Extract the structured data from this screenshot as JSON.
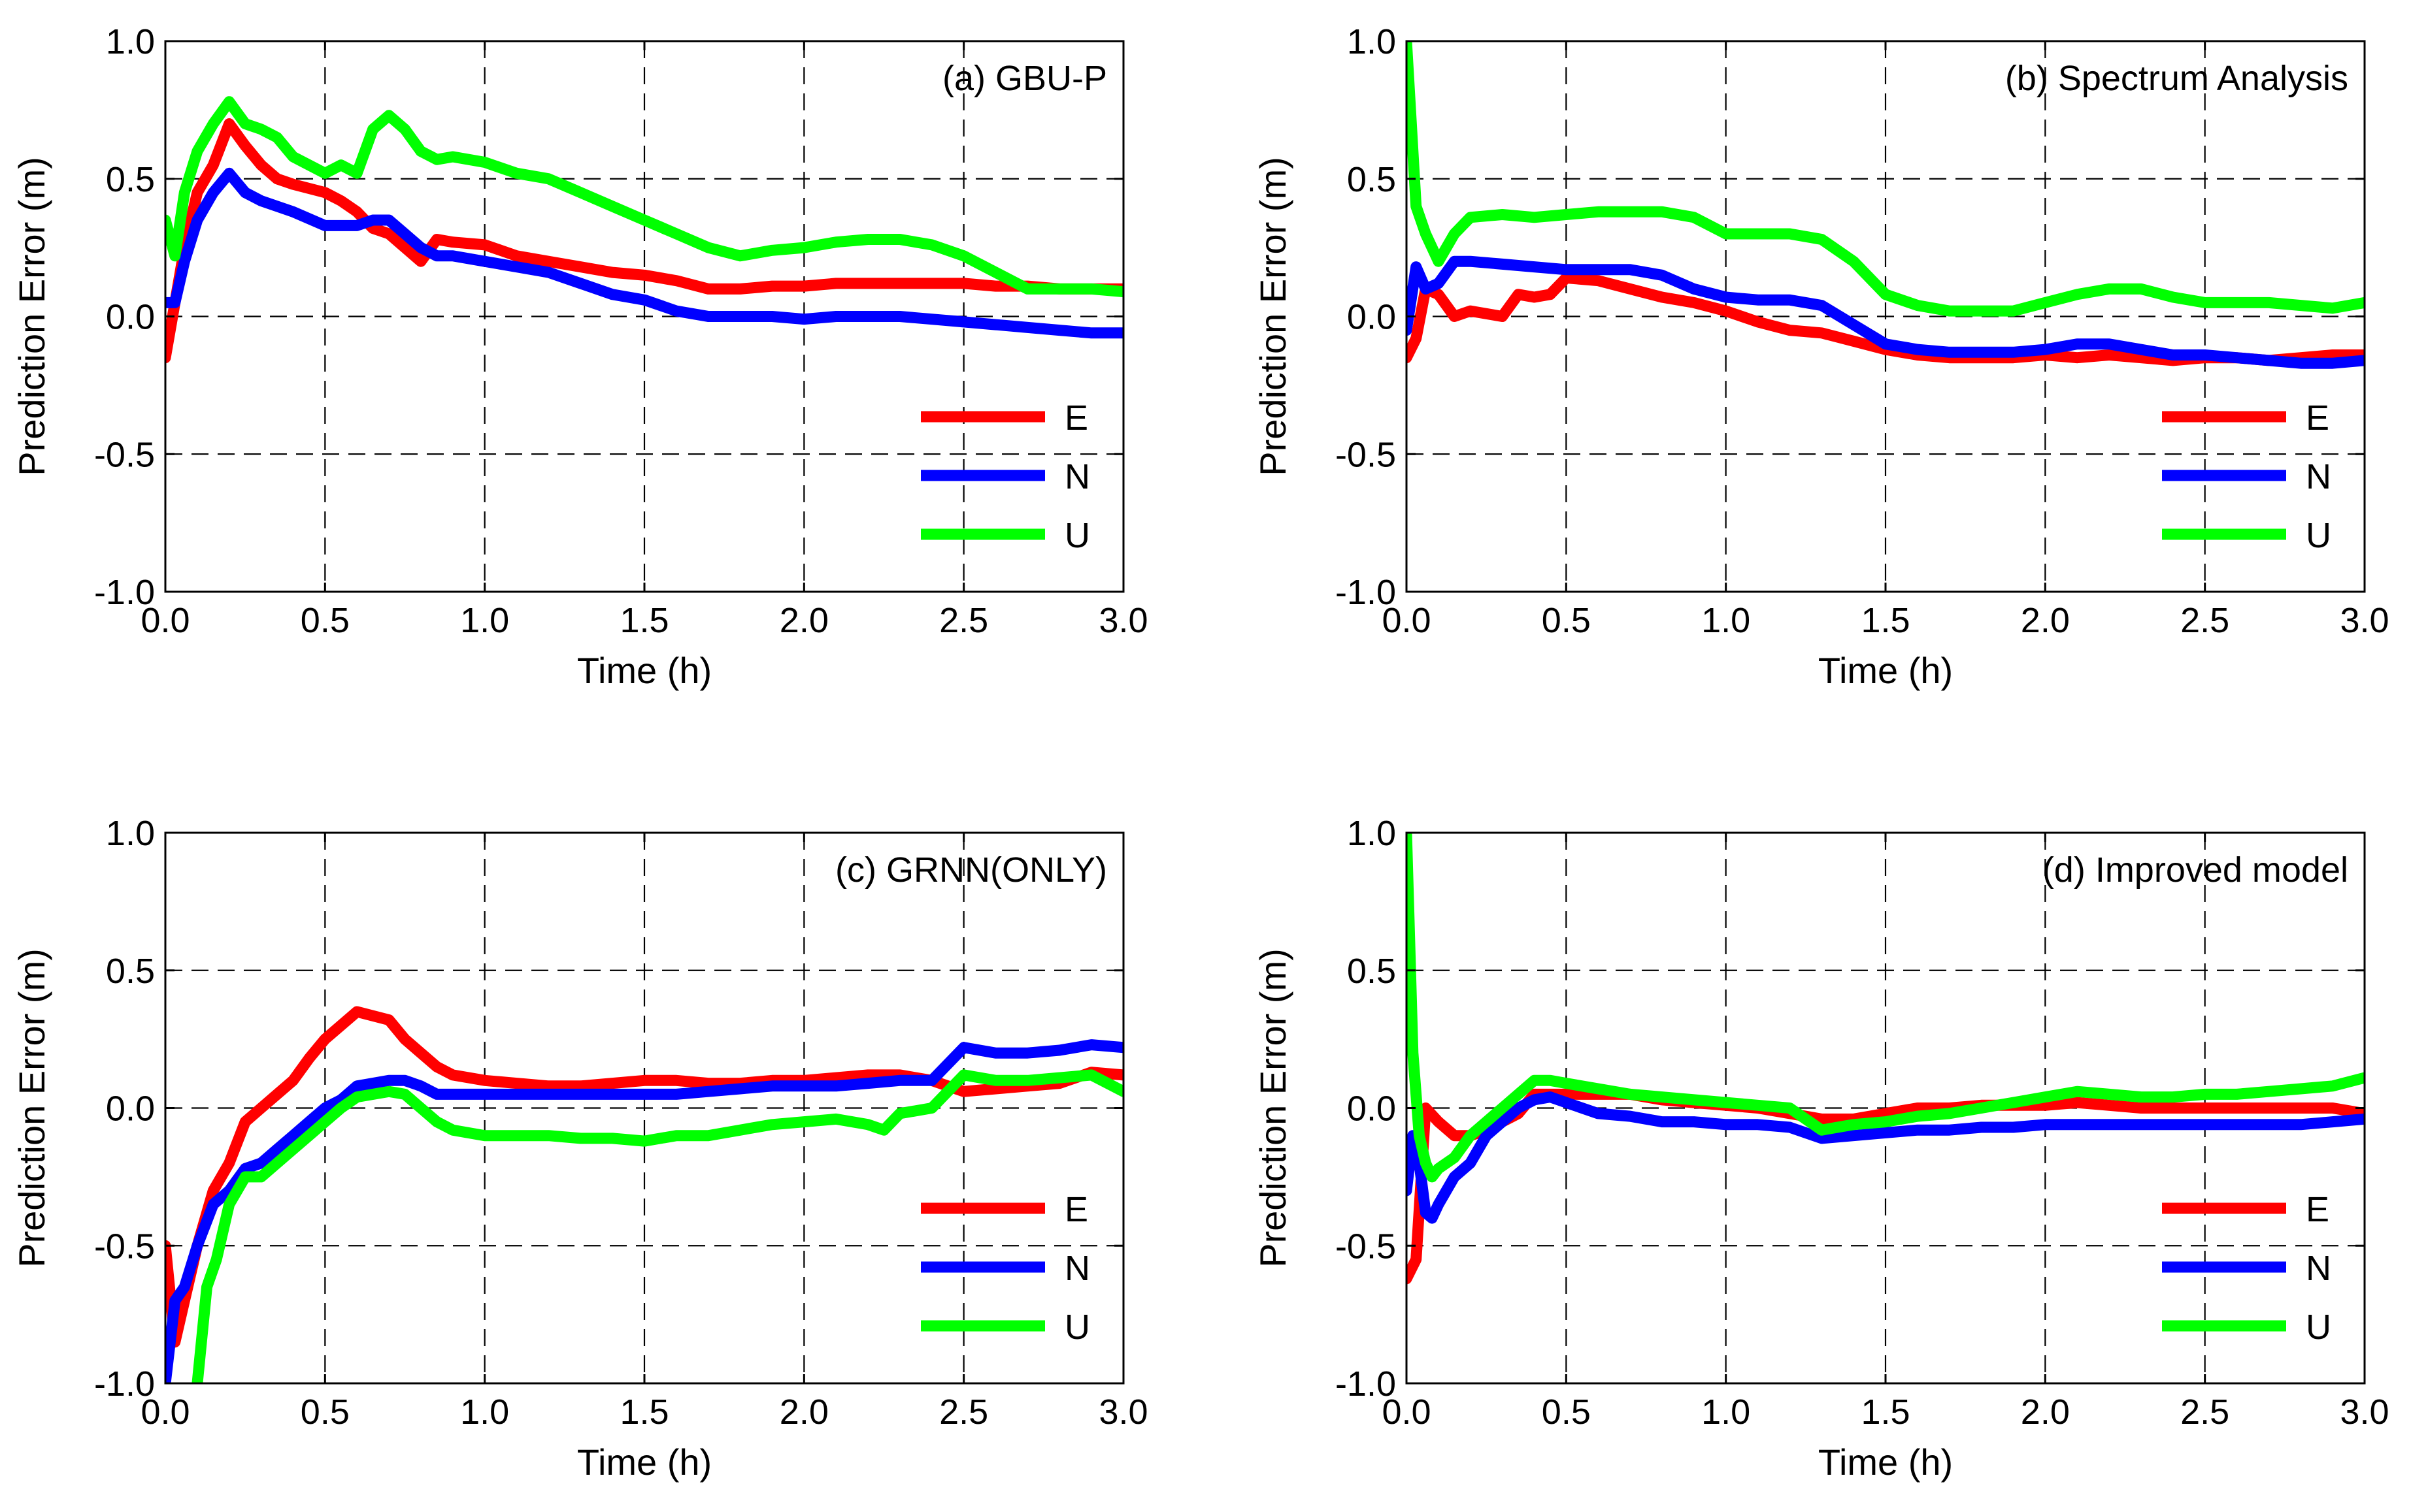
{
  "colors": {
    "E": "#ff0000",
    "N": "#0000ff",
    "U": "#00ff00"
  },
  "chart_data": [
    {
      "type": "line",
      "title": "(a) GBU-P",
      "xlabel": "Time (h)",
      "ylabel": "Prediction Error (m)",
      "xlim": [
        0,
        3
      ],
      "ylim": [
        -1,
        1
      ],
      "xticks": [
        "0.0",
        "0.5",
        "1.0",
        "1.5",
        "2.0",
        "2.5",
        "3.0"
      ],
      "yticks": [
        "1.0",
        "0.5",
        "0.0",
        "-0.5",
        "-1.0"
      ],
      "grid": true,
      "legend_position": "bottom-right",
      "series": [
        {
          "name": "E",
          "x": [
            0,
            0.03,
            0.06,
            0.1,
            0.15,
            0.2,
            0.25,
            0.3,
            0.35,
            0.4,
            0.5,
            0.55,
            0.6,
            0.65,
            0.7,
            0.75,
            0.8,
            0.85,
            0.9,
            1.0,
            1.1,
            1.2,
            1.3,
            1.4,
            1.5,
            1.6,
            1.7,
            1.8,
            1.9,
            2.0,
            2.1,
            2.2,
            2.3,
            2.4,
            2.5,
            2.6,
            2.7,
            2.8,
            2.9,
            3.0
          ],
          "values": [
            -0.15,
            0.05,
            0.25,
            0.45,
            0.55,
            0.7,
            0.62,
            0.55,
            0.5,
            0.48,
            0.45,
            0.42,
            0.38,
            0.32,
            0.3,
            0.25,
            0.2,
            0.28,
            0.27,
            0.26,
            0.22,
            0.2,
            0.18,
            0.16,
            0.15,
            0.13,
            0.1,
            0.1,
            0.11,
            0.11,
            0.12,
            0.12,
            0.12,
            0.12,
            0.12,
            0.11,
            0.11,
            0.1,
            0.1,
            0.1
          ]
        },
        {
          "name": "N",
          "x": [
            0,
            0.03,
            0.06,
            0.1,
            0.15,
            0.2,
            0.25,
            0.3,
            0.35,
            0.4,
            0.5,
            0.55,
            0.6,
            0.65,
            0.7,
            0.75,
            0.8,
            0.85,
            0.9,
            1.0,
            1.1,
            1.2,
            1.3,
            1.4,
            1.5,
            1.6,
            1.7,
            1.8,
            1.9,
            2.0,
            2.1,
            2.2,
            2.3,
            2.4,
            2.5,
            2.6,
            2.7,
            2.8,
            2.9,
            3.0
          ],
          "values": [
            0.05,
            0.05,
            0.2,
            0.35,
            0.45,
            0.52,
            0.45,
            0.42,
            0.4,
            0.38,
            0.33,
            0.33,
            0.33,
            0.35,
            0.35,
            0.3,
            0.25,
            0.22,
            0.22,
            0.2,
            0.18,
            0.16,
            0.12,
            0.08,
            0.06,
            0.02,
            0,
            0,
            0,
            -0.01,
            0,
            0,
            0,
            -0.01,
            -0.02,
            -0.03,
            -0.04,
            -0.05,
            -0.06,
            -0.06
          ]
        },
        {
          "name": "U",
          "x": [
            0,
            0.03,
            0.06,
            0.1,
            0.15,
            0.2,
            0.25,
            0.3,
            0.35,
            0.4,
            0.5,
            0.55,
            0.6,
            0.65,
            0.7,
            0.75,
            0.8,
            0.85,
            0.9,
            1.0,
            1.1,
            1.2,
            1.3,
            1.4,
            1.5,
            1.6,
            1.7,
            1.8,
            1.9,
            2.0,
            2.1,
            2.2,
            2.3,
            2.4,
            2.5,
            2.6,
            2.7,
            2.8,
            2.9,
            3.0
          ],
          "values": [
            0.35,
            0.22,
            0.45,
            0.6,
            0.7,
            0.78,
            0.7,
            0.68,
            0.65,
            0.58,
            0.52,
            0.55,
            0.52,
            0.68,
            0.73,
            0.68,
            0.6,
            0.57,
            0.58,
            0.56,
            0.52,
            0.5,
            0.45,
            0.4,
            0.35,
            0.3,
            0.25,
            0.22,
            0.24,
            0.25,
            0.27,
            0.28,
            0.28,
            0.26,
            0.22,
            0.16,
            0.1,
            0.1,
            0.1,
            0.09
          ]
        }
      ]
    },
    {
      "type": "line",
      "title": "(b) Spectrum Analysis",
      "xlabel": "Time (h)",
      "ylabel": "Prediction Error (m)",
      "xlim": [
        0,
        3
      ],
      "ylim": [
        -1,
        1
      ],
      "xticks": [
        "0.0",
        "0.5",
        "1.0",
        "1.5",
        "2.0",
        "2.5",
        "3.0"
      ],
      "yticks": [
        "1.0",
        "0.5",
        "0.0",
        "-0.5",
        "-1.0"
      ],
      "grid": true,
      "legend_position": "bottom-right",
      "series": [
        {
          "name": "E",
          "x": [
            0,
            0.03,
            0.06,
            0.1,
            0.15,
            0.2,
            0.3,
            0.35,
            0.4,
            0.45,
            0.5,
            0.6,
            0.7,
            0.8,
            0.9,
            1.0,
            1.1,
            1.2,
            1.3,
            1.4,
            1.5,
            1.6,
            1.7,
            1.8,
            1.9,
            2.0,
            2.1,
            2.2,
            2.3,
            2.4,
            2.5,
            2.6,
            2.7,
            2.8,
            2.9,
            3.0
          ],
          "values": [
            -0.15,
            -0.08,
            0.1,
            0.08,
            0.0,
            0.02,
            0.0,
            0.08,
            0.07,
            0.08,
            0.14,
            0.13,
            0.1,
            0.07,
            0.05,
            0.02,
            -0.02,
            -0.05,
            -0.06,
            -0.09,
            -0.12,
            -0.14,
            -0.15,
            -0.15,
            -0.15,
            -0.14,
            -0.15,
            -0.14,
            -0.15,
            -0.16,
            -0.15,
            -0.15,
            -0.16,
            -0.15,
            -0.14,
            -0.14
          ]
        },
        {
          "name": "N",
          "x": [
            0,
            0.03,
            0.06,
            0.1,
            0.15,
            0.2,
            0.3,
            0.4,
            0.5,
            0.6,
            0.7,
            0.8,
            0.9,
            1.0,
            1.1,
            1.2,
            1.3,
            1.4,
            1.5,
            1.6,
            1.7,
            1.8,
            1.9,
            2.0,
            2.1,
            2.2,
            2.3,
            2.4,
            2.5,
            2.6,
            2.7,
            2.8,
            2.9,
            3.0
          ],
          "values": [
            -0.05,
            0.18,
            0.1,
            0.12,
            0.2,
            0.2,
            0.19,
            0.18,
            0.17,
            0.17,
            0.17,
            0.15,
            0.1,
            0.07,
            0.06,
            0.06,
            0.04,
            -0.03,
            -0.1,
            -0.12,
            -0.13,
            -0.13,
            -0.13,
            -0.12,
            -0.1,
            -0.1,
            -0.12,
            -0.14,
            -0.14,
            -0.15,
            -0.16,
            -0.17,
            -0.17,
            -0.16
          ]
        },
        {
          "name": "U",
          "x": [
            0,
            0.03,
            0.06,
            0.1,
            0.15,
            0.2,
            0.3,
            0.4,
            0.5,
            0.6,
            0.7,
            0.8,
            0.9,
            1.0,
            1.1,
            1.2,
            1.3,
            1.4,
            1.5,
            1.6,
            1.7,
            1.8,
            1.9,
            2.0,
            2.1,
            2.2,
            2.3,
            2.4,
            2.5,
            2.6,
            2.7,
            2.8,
            2.9,
            3.0
          ],
          "values": [
            1.0,
            0.4,
            0.3,
            0.2,
            0.3,
            0.36,
            0.37,
            0.36,
            0.37,
            0.38,
            0.38,
            0.38,
            0.36,
            0.3,
            0.3,
            0.3,
            0.28,
            0.2,
            0.08,
            0.04,
            0.02,
            0.02,
            0.02,
            0.05,
            0.08,
            0.1,
            0.1,
            0.07,
            0.05,
            0.05,
            0.05,
            0.04,
            0.03,
            0.05
          ]
        }
      ]
    },
    {
      "type": "line",
      "title": "(c) GRNN(ONLY)",
      "xlabel": "Time (h)",
      "ylabel": "Prediction Error (m)",
      "xlim": [
        0,
        3
      ],
      "ylim": [
        -1,
        1
      ],
      "xticks": [
        "0.0",
        "0.5",
        "1.0",
        "1.5",
        "2.0",
        "2.5",
        "3.0"
      ],
      "yticks": [
        "1.0",
        "0.5",
        "0.0",
        "-0.5",
        "-1.0"
      ],
      "grid": true,
      "legend_position": "bottom-right",
      "series": [
        {
          "name": "E",
          "x": [
            0,
            0.03,
            0.06,
            0.1,
            0.15,
            0.2,
            0.25,
            0.3,
            0.35,
            0.4,
            0.45,
            0.5,
            0.55,
            0.6,
            0.7,
            0.75,
            0.8,
            0.85,
            0.9,
            1.0,
            1.1,
            1.2,
            1.3,
            1.4,
            1.5,
            1.6,
            1.7,
            1.8,
            1.9,
            2.0,
            2.1,
            2.2,
            2.3,
            2.4,
            2.5,
            2.6,
            2.7,
            2.8,
            2.9,
            3.0
          ],
          "values": [
            -0.5,
            -0.85,
            -0.7,
            -0.5,
            -0.3,
            -0.2,
            -0.05,
            0.0,
            0.05,
            0.1,
            0.18,
            0.25,
            0.3,
            0.35,
            0.32,
            0.25,
            0.2,
            0.15,
            0.12,
            0.1,
            0.09,
            0.08,
            0.08,
            0.09,
            0.1,
            0.1,
            0.09,
            0.09,
            0.1,
            0.1,
            0.11,
            0.12,
            0.12,
            0.1,
            0.06,
            0.07,
            0.08,
            0.09,
            0.13,
            0.12
          ]
        },
        {
          "name": "N",
          "x": [
            0,
            0.03,
            0.06,
            0.1,
            0.15,
            0.2,
            0.25,
            0.3,
            0.35,
            0.4,
            0.45,
            0.5,
            0.55,
            0.6,
            0.7,
            0.75,
            0.8,
            0.85,
            0.9,
            1.0,
            1.1,
            1.2,
            1.3,
            1.4,
            1.5,
            1.6,
            1.7,
            1.8,
            1.9,
            2.0,
            2.1,
            2.2,
            2.3,
            2.4,
            2.5,
            2.6,
            2.7,
            2.8,
            2.9,
            3.0
          ],
          "values": [
            -1.0,
            -0.7,
            -0.65,
            -0.5,
            -0.35,
            -0.3,
            -0.22,
            -0.2,
            -0.15,
            -0.1,
            -0.05,
            0.0,
            0.03,
            0.08,
            0.1,
            0.1,
            0.08,
            0.05,
            0.05,
            0.05,
            0.05,
            0.05,
            0.05,
            0.05,
            0.05,
            0.05,
            0.06,
            0.07,
            0.08,
            0.08,
            0.08,
            0.09,
            0.1,
            0.1,
            0.22,
            0.2,
            0.2,
            0.21,
            0.23,
            0.22
          ]
        },
        {
          "name": "U",
          "x": [
            0.1,
            0.13,
            0.16,
            0.2,
            0.25,
            0.3,
            0.35,
            0.4,
            0.45,
            0.5,
            0.55,
            0.6,
            0.7,
            0.75,
            0.8,
            0.85,
            0.9,
            1.0,
            1.1,
            1.2,
            1.3,
            1.4,
            1.5,
            1.6,
            1.7,
            1.8,
            1.9,
            2.0,
            2.1,
            2.2,
            2.25,
            2.3,
            2.4,
            2.5,
            2.6,
            2.7,
            2.8,
            2.9,
            3.0
          ],
          "values": [
            -1.0,
            -0.65,
            -0.55,
            -0.35,
            -0.25,
            -0.25,
            -0.2,
            -0.15,
            -0.1,
            -0.05,
            0.0,
            0.04,
            0.06,
            0.05,
            0.0,
            -0.05,
            -0.08,
            -0.1,
            -0.1,
            -0.1,
            -0.11,
            -0.11,
            -0.12,
            -0.1,
            -0.1,
            -0.08,
            -0.06,
            -0.05,
            -0.04,
            -0.06,
            -0.08,
            -0.02,
            0.0,
            0.12,
            0.1,
            0.1,
            0.11,
            0.12,
            0.06
          ]
        }
      ]
    },
    {
      "type": "line",
      "title": "(d) Improved model",
      "xlabel": "Time (h)",
      "ylabel": "Prediction Error (m)",
      "xlim": [
        0,
        3
      ],
      "ylim": [
        -1,
        1
      ],
      "xticks": [
        "0.0",
        "0.5",
        "1.0",
        "1.5",
        "2.0",
        "2.5",
        "3.0"
      ],
      "yticks": [
        "1.0",
        "0.5",
        "0.0",
        "-0.5",
        "-1.0"
      ],
      "grid": true,
      "legend_position": "bottom-right",
      "series": [
        {
          "name": "E",
          "x": [
            0,
            0.03,
            0.06,
            0.1,
            0.15,
            0.2,
            0.25,
            0.3,
            0.35,
            0.4,
            0.45,
            0.5,
            0.6,
            0.7,
            0.8,
            0.9,
            1.0,
            1.1,
            1.2,
            1.3,
            1.4,
            1.5,
            1.6,
            1.7,
            1.8,
            1.9,
            2.0,
            2.1,
            2.2,
            2.3,
            2.4,
            2.5,
            2.6,
            2.7,
            2.8,
            2.9,
            3.0
          ],
          "values": [
            -0.62,
            -0.55,
            0.0,
            -0.05,
            -0.1,
            -0.1,
            -0.08,
            -0.05,
            -0.02,
            0.05,
            0.05,
            0.05,
            0.05,
            0.05,
            0.03,
            0.02,
            0.01,
            0.0,
            -0.02,
            -0.04,
            -0.04,
            -0.02,
            0.0,
            0.0,
            0.01,
            0.01,
            0.01,
            0.02,
            0.01,
            0.0,
            0.0,
            0.0,
            0.0,
            0.0,
            0.0,
            0.0,
            -0.02
          ]
        },
        {
          "name": "N",
          "x": [
            0,
            0.02,
            0.04,
            0.06,
            0.08,
            0.1,
            0.15,
            0.2,
            0.25,
            0.3,
            0.35,
            0.4,
            0.45,
            0.5,
            0.6,
            0.7,
            0.8,
            0.9,
            1.0,
            1.1,
            1.2,
            1.3,
            1.4,
            1.5,
            1.6,
            1.7,
            1.8,
            1.9,
            2.0,
            2.1,
            2.2,
            2.3,
            2.4,
            2.5,
            2.6,
            2.7,
            2.8,
            2.9,
            3.0
          ],
          "values": [
            -0.3,
            -0.1,
            -0.2,
            -0.38,
            -0.4,
            -0.35,
            -0.25,
            -0.2,
            -0.1,
            -0.05,
            0.0,
            0.03,
            0.04,
            0.02,
            -0.02,
            -0.03,
            -0.05,
            -0.05,
            -0.06,
            -0.06,
            -0.07,
            -0.11,
            -0.1,
            -0.09,
            -0.08,
            -0.08,
            -0.07,
            -0.07,
            -0.06,
            -0.06,
            -0.06,
            -0.06,
            -0.06,
            -0.06,
            -0.06,
            -0.06,
            -0.06,
            -0.05,
            -0.04
          ]
        },
        {
          "name": "U",
          "x": [
            0,
            0.02,
            0.04,
            0.06,
            0.08,
            0.1,
            0.15,
            0.2,
            0.25,
            0.3,
            0.35,
            0.4,
            0.45,
            0.5,
            0.6,
            0.7,
            0.8,
            0.9,
            1.0,
            1.1,
            1.2,
            1.3,
            1.4,
            1.5,
            1.6,
            1.7,
            1.8,
            1.9,
            2.0,
            2.1,
            2.2,
            2.3,
            2.4,
            2.5,
            2.6,
            2.7,
            2.8,
            2.9,
            3.0
          ],
          "values": [
            1.0,
            0.2,
            -0.1,
            -0.2,
            -0.25,
            -0.22,
            -0.18,
            -0.1,
            -0.05,
            0.0,
            0.05,
            0.1,
            0.1,
            0.09,
            0.07,
            0.05,
            0.04,
            0.03,
            0.02,
            0.01,
            0.0,
            -0.08,
            -0.06,
            -0.05,
            -0.03,
            -0.02,
            0.0,
            0.02,
            0.04,
            0.06,
            0.05,
            0.04,
            0.04,
            0.05,
            0.05,
            0.06,
            0.07,
            0.08,
            0.11
          ]
        }
      ]
    }
  ]
}
